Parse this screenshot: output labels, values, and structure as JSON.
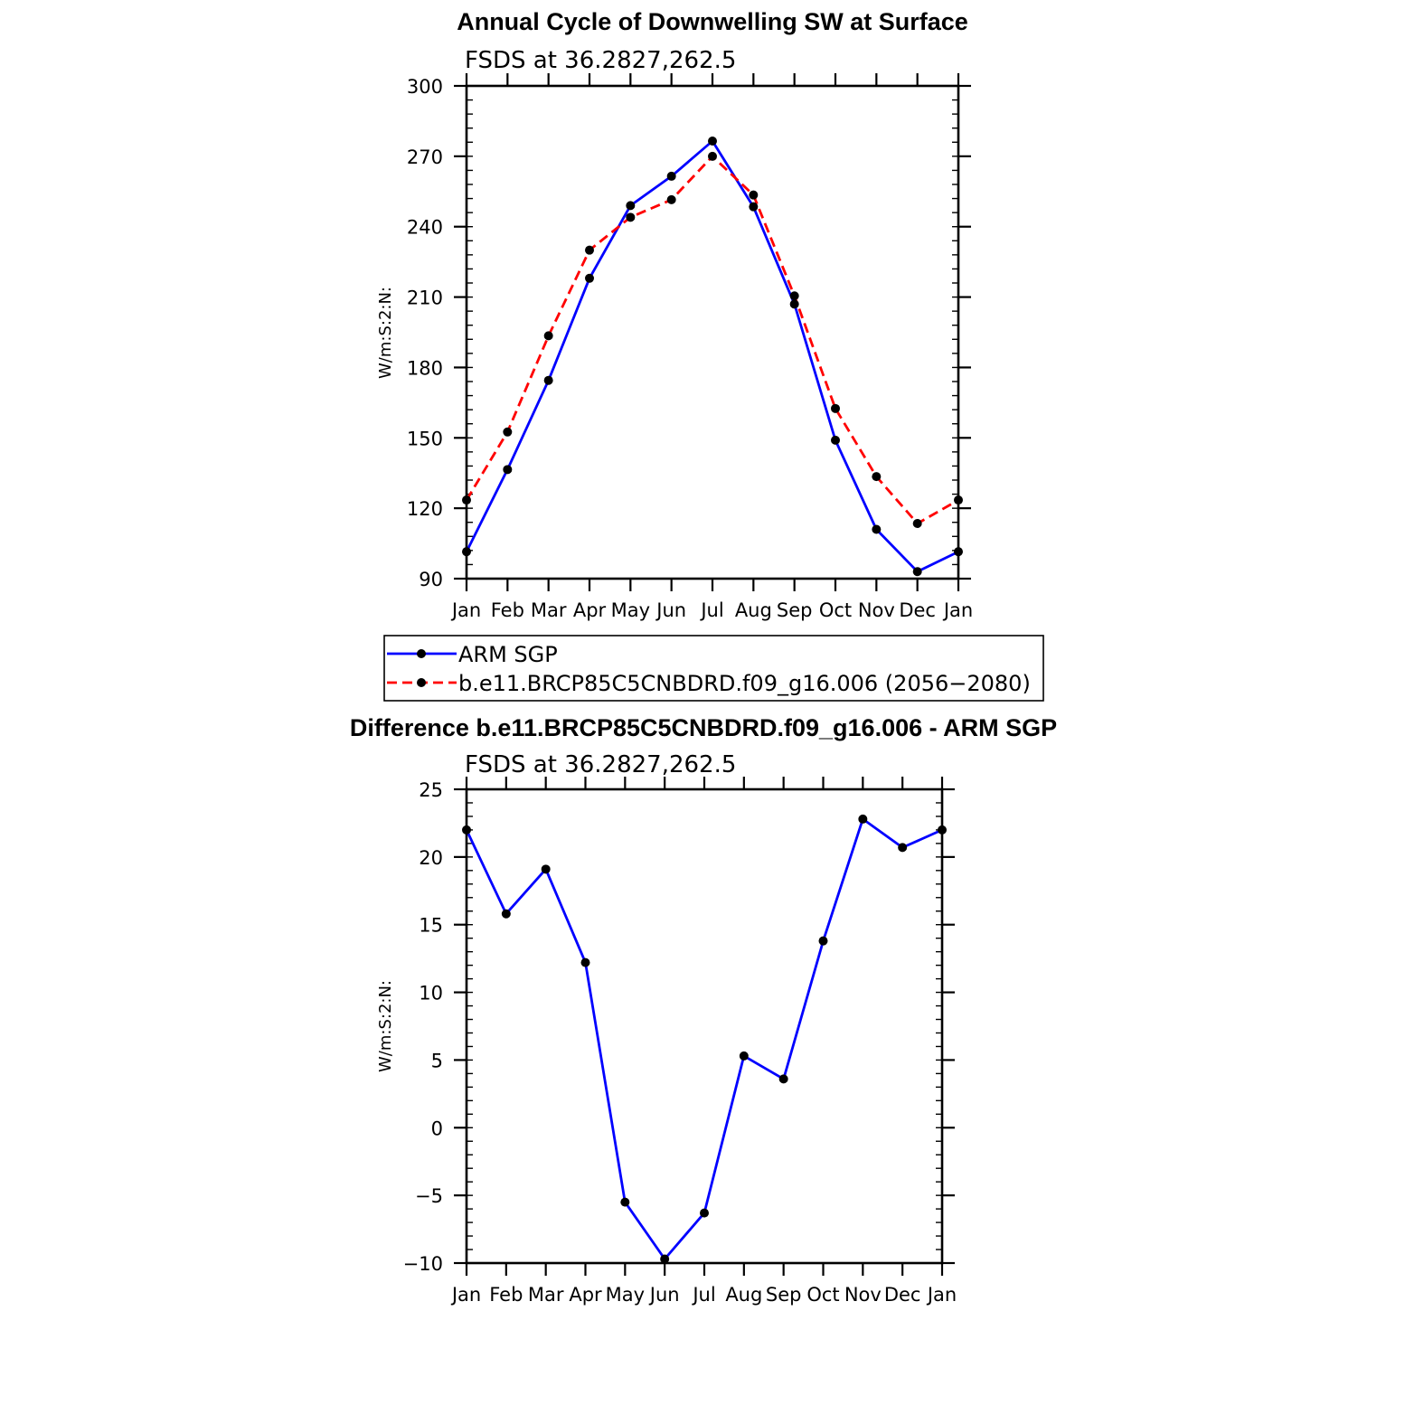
{
  "chart_data": [
    {
      "type": "line",
      "title": "Annual Cycle of Downwelling SW at Surface",
      "subtitle": "FSDS at 36.2827,262.5",
      "ylabel": "W/m:S:2:N:",
      "xlabel": "",
      "categories": [
        "Jan",
        "Feb",
        "Mar",
        "Apr",
        "May",
        "Jun",
        "Jul",
        "Aug",
        "Sep",
        "Oct",
        "Nov",
        "Dec",
        "Jan"
      ],
      "ylim": [
        90,
        300
      ],
      "yticks": [
        90,
        120,
        150,
        180,
        210,
        240,
        270,
        300
      ],
      "grid": false,
      "series": [
        {
          "name": "ARM SGP",
          "color": "#0000ff",
          "style": "solid",
          "marker": "filled-circle",
          "values": [
            101.5,
            136.5,
            174.5,
            218,
            249,
            261.5,
            276.5,
            248.5,
            207,
            149,
            111,
            93,
            101.5
          ]
        },
        {
          "name": "b.e11.BRCP85C5CNBDRD.f09_g16.006 (2056−2080)",
          "color": "#ff0000",
          "style": "dashed",
          "marker": "filled-circle",
          "values": [
            123.5,
            152.5,
            193.5,
            230,
            244,
            251.5,
            270,
            253.5,
            210.5,
            162.5,
            133.5,
            113.5,
            123.5
          ]
        }
      ]
    },
    {
      "type": "line",
      "title": "Difference b.e11.BRCP85C5CNBDRD.f09_g16.006 - ARM SGP",
      "subtitle": "FSDS at 36.2827,262.5",
      "ylabel": "W/m:S:2:N:",
      "xlabel": "",
      "categories": [
        "Jan",
        "Feb",
        "Mar",
        "Apr",
        "May",
        "Jun",
        "Jul",
        "Aug",
        "Sep",
        "Oct",
        "Nov",
        "Dec",
        "Jan"
      ],
      "ylim": [
        -10,
        25
      ],
      "yticks": [
        -10,
        -5,
        0,
        5,
        10,
        15,
        20,
        25
      ],
      "grid": false,
      "series": [
        {
          "color": "#0000ff",
          "style": "solid",
          "marker": "filled-circle",
          "values": [
            22,
            15.8,
            19.1,
            12.2,
            -5.5,
            -9.7,
            -6.3,
            5.3,
            3.6,
            13.8,
            22.8,
            20.7,
            22
          ]
        }
      ]
    }
  ],
  "legend": {
    "placement": "below-top-panel",
    "entries": [
      {
        "label": "ARM SGP",
        "color": "#0000ff",
        "style": "solid"
      },
      {
        "label": "b.e11.BRCP85C5CNBDRD.f09_g16.006 (2056−2080)",
        "color": "#ff0000",
        "style": "dashed"
      }
    ]
  }
}
